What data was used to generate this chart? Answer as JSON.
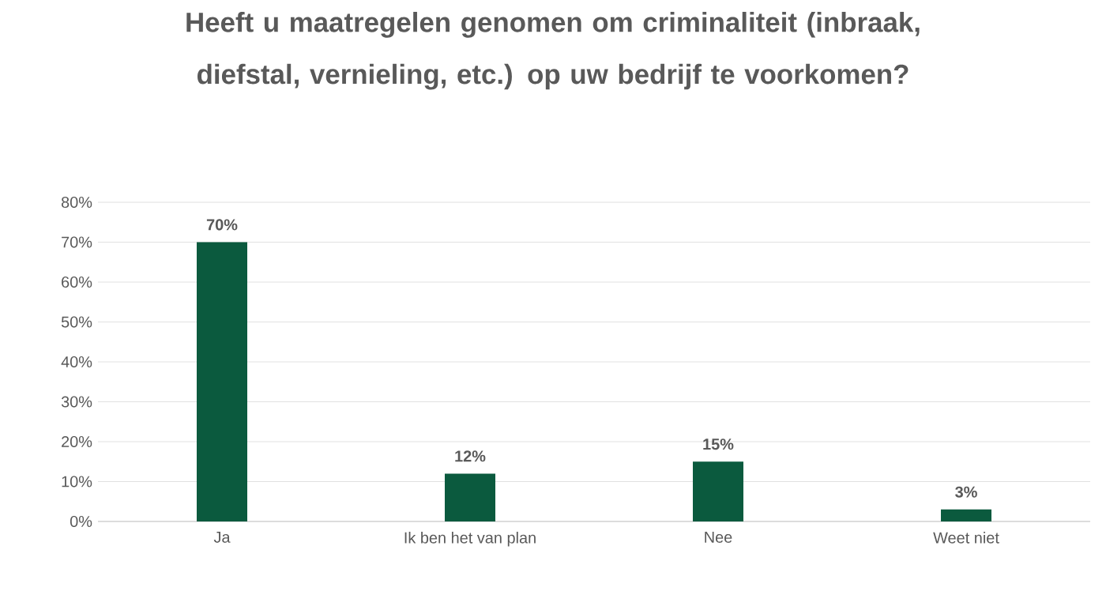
{
  "chart_data": {
    "type": "bar",
    "title": "Heeft u maatregelen genomen om criminaliteit (inbraak, diefstal, vernieling, etc.) op uw bedrijf te voorkomen?",
    "categories": [
      "Ja",
      "Ik ben het van plan",
      "Nee",
      "Weet niet"
    ],
    "values": [
      70,
      12,
      15,
      3
    ],
    "value_labels": [
      "70%",
      "12%",
      "15%",
      "3%"
    ],
    "color": "#0b5a3e",
    "ylim": [
      0,
      80
    ],
    "yticks": [
      {
        "value": 0,
        "label": "0%"
      },
      {
        "value": 10,
        "label": "10%"
      },
      {
        "value": 20,
        "label": "20%"
      },
      {
        "value": 30,
        "label": "30%"
      },
      {
        "value": 40,
        "label": "40%"
      },
      {
        "value": 50,
        "label": "50%"
      },
      {
        "value": 60,
        "label": "60%"
      },
      {
        "value": 70,
        "label": "70%"
      },
      {
        "value": 80,
        "label": "80%"
      }
    ],
    "grid": "y"
  }
}
